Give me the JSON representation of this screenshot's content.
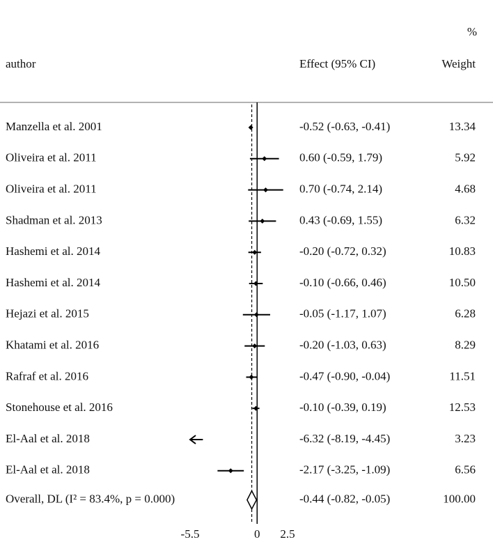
{
  "chart_data": {
    "type": "forest",
    "headers": {
      "author": "author",
      "effect": "Effect (95% CI)",
      "weight_unit": "%",
      "weight": "Weight"
    },
    "categories": [
      "Manzella et al. 2001",
      "Oliveira et al. 2011",
      "Oliveira et al. 2011",
      "Shadman et al. 2013",
      "Hashemi et al. 2014",
      "Hashemi et al. 2014",
      "Hejazi et al. 2015",
      "Khatami et al. 2016",
      "Rafraf et al. 2016",
      "Stonehouse et al. 2016",
      "El-Aal et al. 2018",
      "El-Aal et al. 2018"
    ],
    "values": [
      -0.52,
      0.6,
      0.7,
      0.43,
      -0.2,
      -0.1,
      -0.05,
      -0.2,
      -0.47,
      -0.1,
      -6.32,
      -2.17
    ],
    "lower": [
      -0.63,
      -0.59,
      -0.74,
      -0.69,
      -0.72,
      -0.66,
      -1.17,
      -1.03,
      -0.9,
      -0.39,
      -8.19,
      -3.25
    ],
    "upper": [
      -0.41,
      1.79,
      2.14,
      1.55,
      0.32,
      0.46,
      1.07,
      0.63,
      -0.04,
      0.19,
      -4.45,
      -1.09
    ],
    "value_labels": [
      "-0.52 (-0.63, -0.41)",
      "0.60 (-0.59, 1.79)",
      "0.70 (-0.74, 2.14)",
      "0.43 (-0.69, 1.55)",
      "-0.20 (-0.72, 0.32)",
      "-0.10 (-0.66, 0.46)",
      "-0.05 (-1.17, 1.07)",
      "-0.20 (-1.03, 0.63)",
      "-0.47 (-0.90, -0.04)",
      "-0.10 (-0.39, 0.19)",
      "-6.32 (-8.19, -4.45)",
      "-2.17 (-3.25, -1.09)"
    ],
    "weights": [
      "13.34",
      "5.92",
      "4.68",
      "6.32",
      "10.83",
      "10.50",
      "6.28",
      "8.29",
      "11.51",
      "12.53",
      "3.23",
      "6.56"
    ],
    "overall": {
      "label": "Overall, DL (I² = 83.4%, p = 0.000)",
      "value": -0.44,
      "lower": -0.82,
      "upper": -0.05,
      "value_label": "-0.44 (-0.82, -0.05)",
      "weight": "100.00"
    },
    "xlim": [
      -5.5,
      2.5
    ],
    "xticks": [
      -5.5,
      0,
      2.5
    ],
    "color": "#000000"
  }
}
